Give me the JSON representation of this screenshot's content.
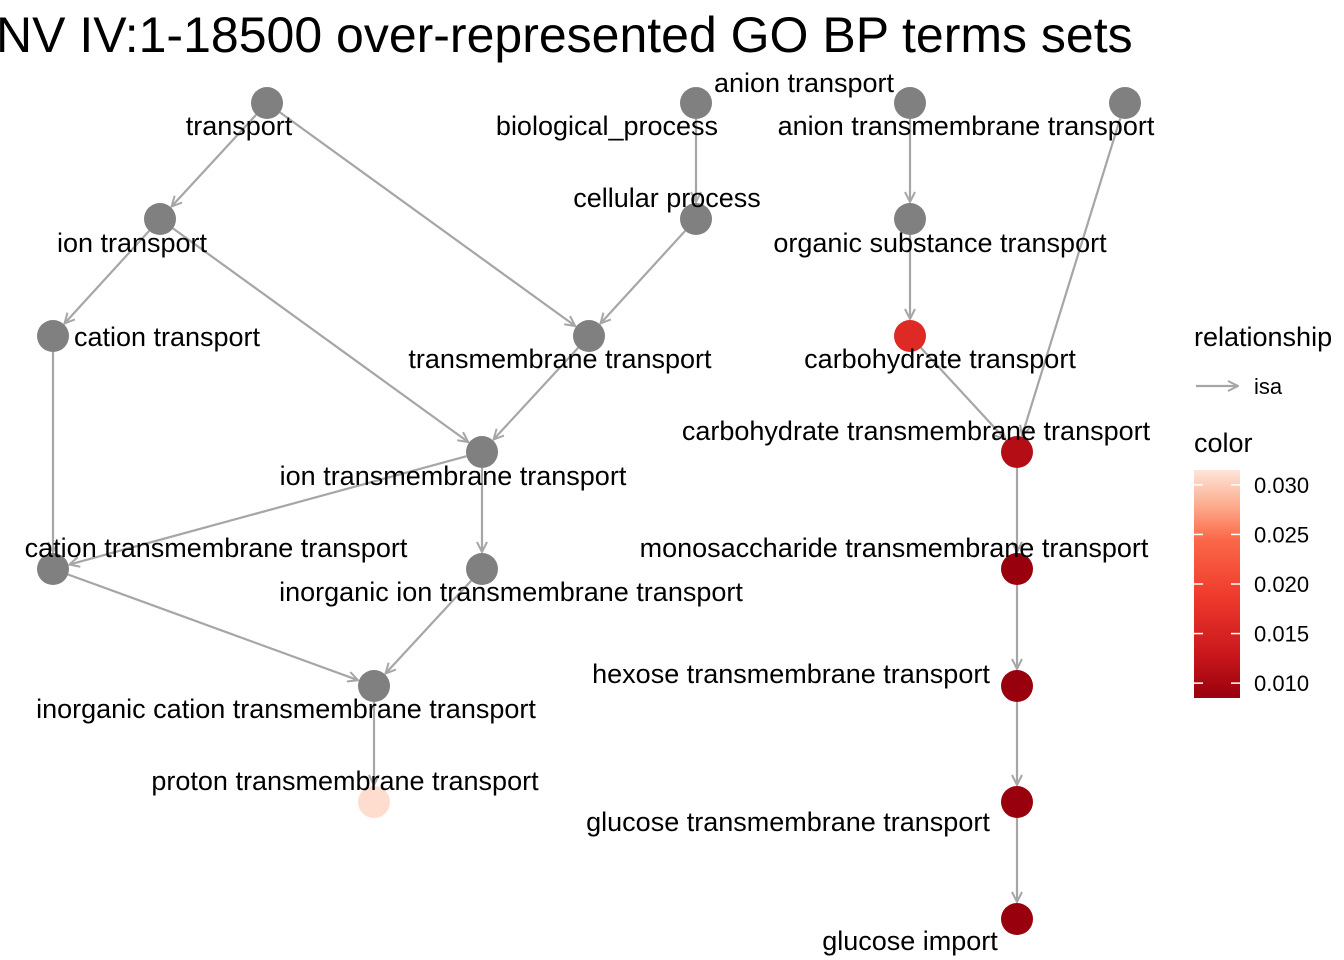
{
  "title": "NV IV:1-18500 over-represented GO BP terms sets",
  "colors": {
    "unscored": "#808080",
    "edge": "#a6a6a6",
    "scale_low": "#99000d",
    "scale_high": "#fee5d9"
  },
  "nodes": [
    {
      "id": "transport",
      "label": "transport",
      "p": null
    },
    {
      "id": "biological_process",
      "label": "biological_process",
      "p": null
    },
    {
      "id": "anion_transport",
      "label": "anion transport",
      "p": null
    },
    {
      "id": "anion_tm_transport",
      "label": "anion transmembrane transport",
      "p": null
    },
    {
      "id": "ion_transport",
      "label": "ion transport",
      "p": null
    },
    {
      "id": "cellular_process",
      "label": "cellular process",
      "p": null
    },
    {
      "id": "organic_substance_transport",
      "label": "organic substance transport",
      "p": null
    },
    {
      "id": "cation_transport",
      "label": "cation transport",
      "p": null
    },
    {
      "id": "transmembrane_transport",
      "label": "transmembrane transport",
      "p": null
    },
    {
      "id": "carbohydrate_transport",
      "label": "carbohydrate transport",
      "p": 0.016
    },
    {
      "id": "ion_tm_transport",
      "label": "ion transmembrane transport",
      "p": null
    },
    {
      "id": "carbohydrate_tm_transport",
      "label": "carbohydrate transmembrane transport",
      "p": 0.011
    },
    {
      "id": "cation_tm_transport",
      "label": "cation transmembrane transport",
      "p": null
    },
    {
      "id": "inorganic_ion_tm_transport",
      "label": "inorganic ion transmembrane transport",
      "p": null
    },
    {
      "id": "monosaccharide_tm_transport",
      "label": "monosaccharide transmembrane transport",
      "p": 0.0085
    },
    {
      "id": "inorganic_cation_tm_transport",
      "label": "inorganic cation transmembrane transport",
      "p": null
    },
    {
      "id": "hexose_tm_transport",
      "label": "hexose transmembrane transport",
      "p": 0.0085
    },
    {
      "id": "proton_tm_transport",
      "label": "proton transmembrane transport",
      "p": 0.031
    },
    {
      "id": "glucose_tm_transport",
      "label": "glucose transmembrane transport",
      "p": 0.0085
    },
    {
      "id": "glucose_import",
      "label": "glucose import",
      "p": 0.0085
    }
  ],
  "edges": [
    {
      "from": "transport",
      "to": "ion_transport"
    },
    {
      "from": "transport",
      "to": "transmembrane_transport"
    },
    {
      "from": "biological_process",
      "to": "cellular_process"
    },
    {
      "from": "cellular_process",
      "to": "transmembrane_transport"
    },
    {
      "from": "anion_transport",
      "to": "organic_substance_transport"
    },
    {
      "from": "organic_substance_transport",
      "to": "carbohydrate_transport"
    },
    {
      "from": "carbohydrate_transport",
      "to": "carbohydrate_tm_transport"
    },
    {
      "from": "anion_tm_transport",
      "to": "carbohydrate_tm_transport"
    },
    {
      "from": "ion_transport",
      "to": "cation_transport"
    },
    {
      "from": "ion_transport",
      "to": "ion_tm_transport"
    },
    {
      "from": "transmembrane_transport",
      "to": "ion_tm_transport"
    },
    {
      "from": "cation_transport",
      "to": "cation_tm_transport"
    },
    {
      "from": "ion_tm_transport",
      "to": "cation_tm_transport"
    },
    {
      "from": "ion_tm_transport",
      "to": "inorganic_ion_tm_transport"
    },
    {
      "from": "cation_tm_transport",
      "to": "inorganic_cation_tm_transport"
    },
    {
      "from": "inorganic_ion_tm_transport",
      "to": "inorganic_cation_tm_transport"
    },
    {
      "from": "inorganic_cation_tm_transport",
      "to": "proton_tm_transport"
    },
    {
      "from": "carbohydrate_tm_transport",
      "to": "monosaccharide_tm_transport"
    },
    {
      "from": "monosaccharide_tm_transport",
      "to": "hexose_tm_transport"
    },
    {
      "from": "hexose_tm_transport",
      "to": "glucose_tm_transport"
    },
    {
      "from": "glucose_tm_transport",
      "to": "glucose_import"
    }
  ],
  "legend": {
    "relationship_title": "relationship",
    "relationship_item": "isa",
    "color_title": "color",
    "color_ticks": [
      "0.030",
      "0.025",
      "0.020",
      "0.015",
      "0.010"
    ],
    "color_tick_values": [
      0.03,
      0.025,
      0.02,
      0.015,
      0.01
    ],
    "color_range": [
      0.0085,
      0.0315
    ]
  }
}
